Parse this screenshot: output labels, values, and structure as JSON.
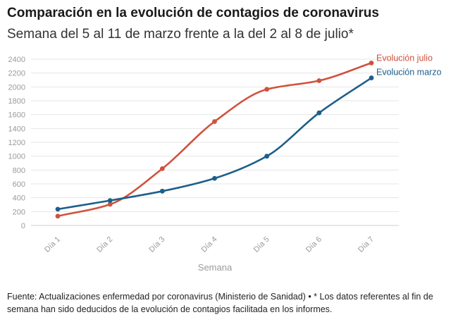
{
  "chart_data": {
    "type": "line",
    "title": "Comparación en la evolución de contagios de coronavirus",
    "subtitle": "Semana del 5 al 11 de marzo frente a la del 2 al 8 de julio*",
    "xlabel": "Semana",
    "ylabel": "",
    "categories": [
      "Día 1",
      "Día 2",
      "Día 3",
      "Día 4",
      "Día 5",
      "Día 6",
      "Día 7"
    ],
    "ylim": [
      0,
      2400
    ],
    "yticks": [
      0,
      200,
      400,
      600,
      800,
      1000,
      1200,
      1400,
      1600,
      1800,
      2000,
      2200,
      2400
    ],
    "grid": true,
    "series": [
      {
        "name": "Evolución julio",
        "color": "#d0523e",
        "values": [
          135,
          305,
          820,
          1500,
          1965,
          2090,
          2345
        ]
      },
      {
        "name": "Evolución marzo",
        "color": "#1d5f8a",
        "values": [
          235,
          360,
          495,
          680,
          1000,
          1625,
          2130
        ]
      }
    ]
  },
  "footnote": "Fuente: Actualizaciones enfermedad por coronavirus (Ministerio de Sanidad) • * Los datos referentes al fin de semana han sido deducidos de la evolución de contagios facilitada en los informes."
}
